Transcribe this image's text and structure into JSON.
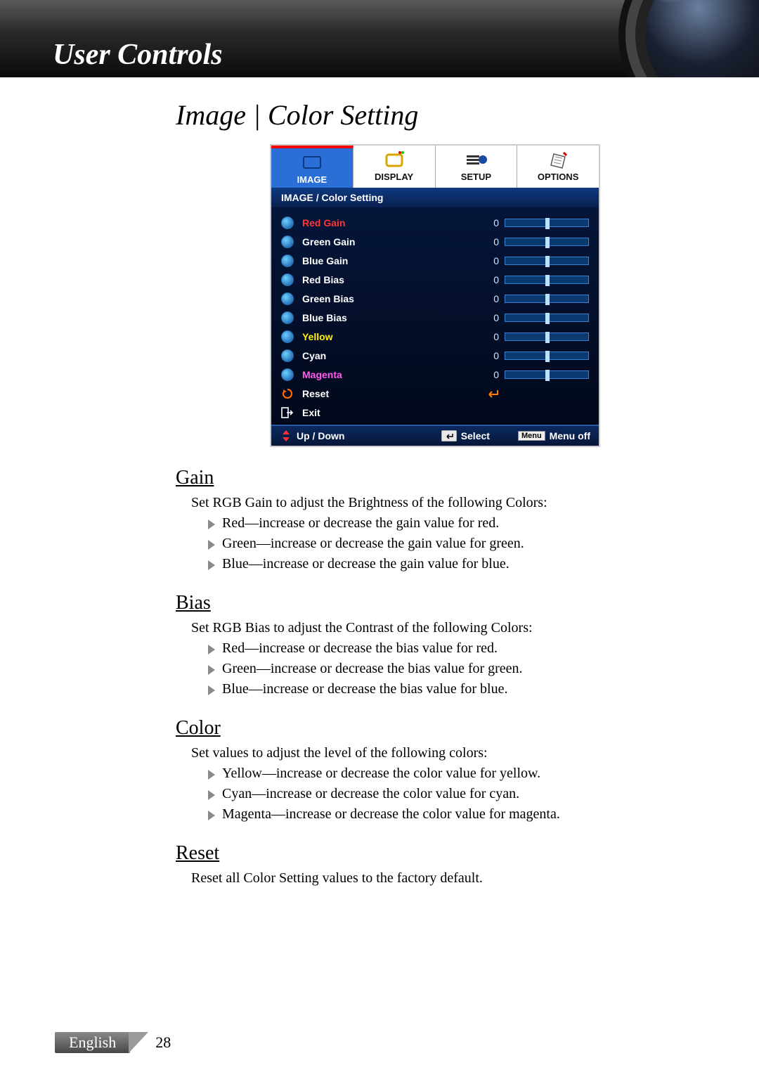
{
  "header": {
    "title": "User Controls"
  },
  "page_title": "Image | Color Setting",
  "osd": {
    "tabs": [
      "IMAGE",
      "DISPLAY",
      "SETUP",
      "OPTIONS"
    ],
    "active_tab_index": 0,
    "breadcrumb": "IMAGE / Color Setting",
    "rows": [
      {
        "label": "Red Gain",
        "color_class": "red",
        "value": 0,
        "type": "slider"
      },
      {
        "label": "Green Gain",
        "color_class": "",
        "value": 0,
        "type": "slider"
      },
      {
        "label": "Blue Gain",
        "color_class": "",
        "value": 0,
        "type": "slider"
      },
      {
        "label": "Red Bias",
        "color_class": "",
        "value": 0,
        "type": "slider"
      },
      {
        "label": "Green Bias",
        "color_class": "",
        "value": 0,
        "type": "slider"
      },
      {
        "label": "Blue Bias",
        "color_class": "",
        "value": 0,
        "type": "slider"
      },
      {
        "label": "Yellow",
        "color_class": "yellow",
        "value": 0,
        "type": "slider"
      },
      {
        "label": "Cyan",
        "color_class": "",
        "value": 0,
        "type": "slider"
      },
      {
        "label": "Magenta",
        "color_class": "magenta",
        "value": 0,
        "type": "slider"
      },
      {
        "label": "Reset",
        "color_class": "",
        "type": "reset"
      },
      {
        "label": "Exit",
        "color_class": "",
        "type": "exit"
      }
    ],
    "footer": {
      "updown": "Up / Down",
      "select": "Select",
      "menu_key": "Menu",
      "menu_off": "Menu off"
    },
    "colors": {
      "active_tab_bg": "#2b6fd6",
      "active_tab_border": "#ff0000",
      "body_grad_top": "#05163a",
      "body_grad_bottom": "#02081a",
      "slider_fill": "#0a3a70",
      "slider_border": "#3a80d0",
      "handle": "#bde0ff"
    }
  },
  "sections": [
    {
      "heading": "Gain",
      "intro": "Set RGB Gain to adjust the Brightness of the following Colors:",
      "items": [
        "Red—increase or decrease the gain value for red.",
        "Green—increase or decrease the gain value for green.",
        "Blue—increase or decrease the gain value for blue."
      ]
    },
    {
      "heading": "Bias",
      "intro": "Set RGB Bias to adjust the Contrast of the following Colors:",
      "items": [
        "Red—increase or decrease the bias value for red.",
        "Green—increase or decrease the bias value for green.",
        "Blue—increase or decrease the bias value for blue."
      ]
    },
    {
      "heading": "Color",
      "intro": "Set values to adjust the level of the following colors:",
      "items": [
        "Yellow—increase or decrease the color value for yellow.",
        "Cyan—increase or decrease the color value for cyan.",
        "Magenta—increase or decrease the color value for magenta."
      ]
    },
    {
      "heading": "Reset",
      "intro": "Reset all Color Setting values to the factory default.",
      "items": []
    }
  ],
  "footer": {
    "language": "English",
    "page_number": "28"
  }
}
